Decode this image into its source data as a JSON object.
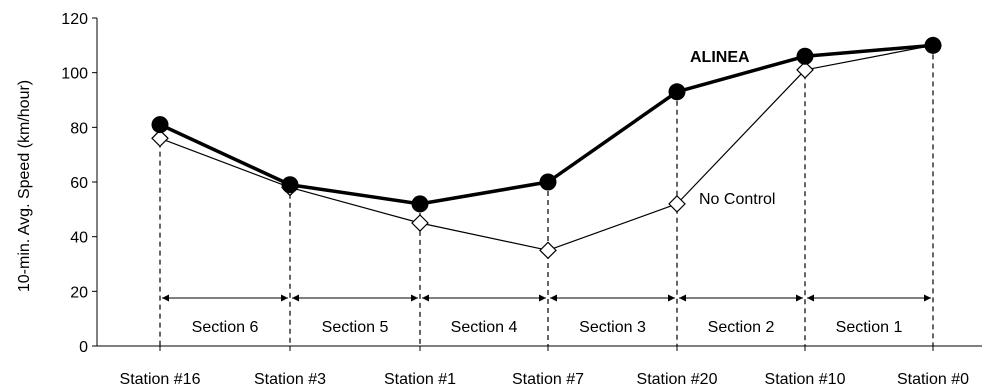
{
  "chart_data": {
    "type": "line",
    "categories": [
      "Station #16",
      "Station #3",
      "Station #1",
      "Station #7",
      "Station #20",
      "Station #10",
      "Station #0"
    ],
    "series": [
      {
        "name": "ALINEA",
        "values": [
          81,
          59,
          52,
          60,
          93,
          106,
          110
        ],
        "marker": "filled-circle",
        "color": "#000000"
      },
      {
        "name": "No Control",
        "values": [
          76,
          58,
          45,
          35,
          52,
          101,
          110
        ],
        "marker": "open-diamond",
        "color": "#000000"
      }
    ],
    "ylabel": "10-min. Avg. Speed (km/hour)",
    "xlabel": "",
    "ylim": [
      0,
      120
    ],
    "yticks": [
      0,
      20,
      40,
      60,
      80,
      100,
      120
    ],
    "grid": false,
    "sections": [
      "Section 6",
      "Section 5",
      "Section 4",
      "Section 3",
      "Section 2",
      "Section 1"
    ],
    "annotations": {
      "alinea": "ALINEA",
      "no_control": "No Control"
    }
  }
}
